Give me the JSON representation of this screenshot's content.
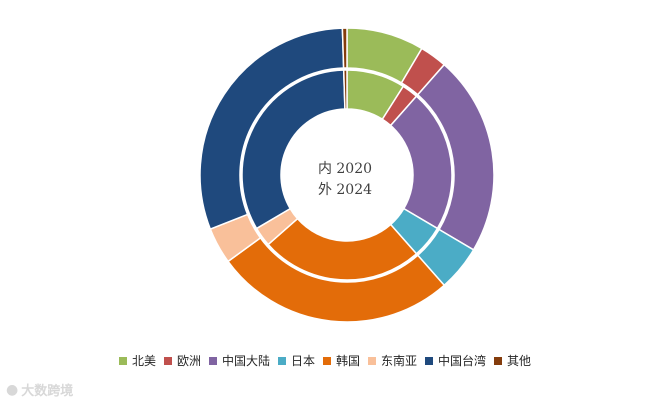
{
  "chart_data": {
    "type": "donut",
    "categories": [
      "北美",
      "欧洲",
      "中国大陆",
      "日本",
      "韩国",
      "东南亚",
      "中国台湾",
      "其他"
    ],
    "colors": [
      "#9bbb59",
      "#c0504d",
      "#8064a2",
      "#4bacc6",
      "#e36c09",
      "#f9c09a",
      "#1f497d",
      "#843c0c"
    ],
    "series": [
      {
        "name": "2020",
        "ring": "inner",
        "values": [
          9,
          2.5,
          22,
          5,
          25,
          3,
          33,
          0.5
        ]
      },
      {
        "name": "2024",
        "ring": "outer",
        "values": [
          8.5,
          3,
          22,
          5,
          26.5,
          4,
          30.5,
          0.5
        ]
      }
    ],
    "center_text": [
      "内 2020",
      "外 2024"
    ],
    "legend_position": "bottom"
  },
  "watermark": {
    "text": "大数跨境",
    "icon": "chat-bubble-icon"
  }
}
